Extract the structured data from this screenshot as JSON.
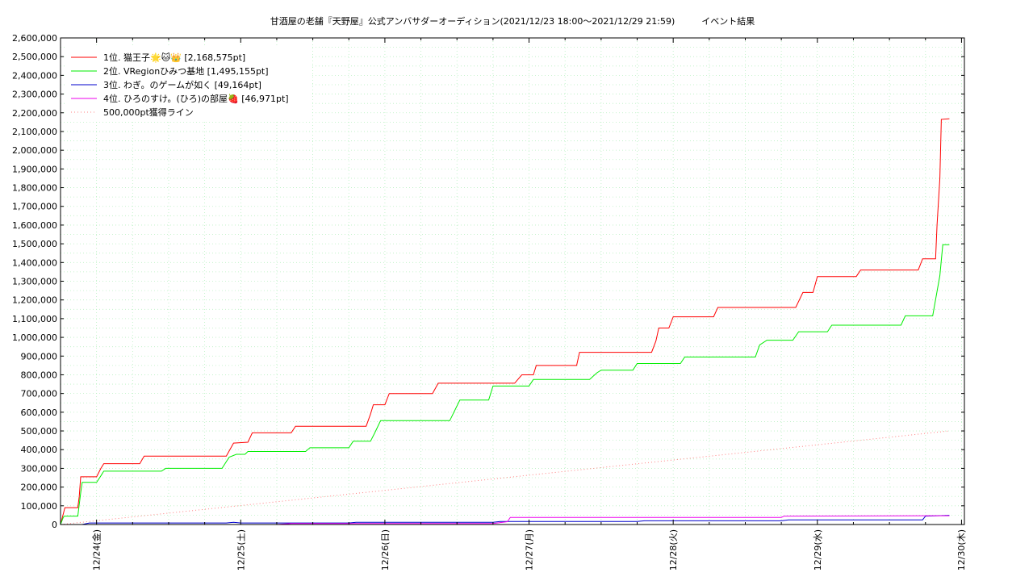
{
  "chart_data": {
    "type": "line",
    "title": "甘酒屋の老舗『天野屋』公式アンバサダーオーディション(2021/12/23 18:00〜2021/12/29 21:59)　　　イベント結果",
    "xlabel": "",
    "ylabel": "",
    "x_unit": "days elapsed from 12/23 18:00",
    "x_range": [
      0,
      6.166
    ],
    "ylim": [
      0,
      2600000
    ],
    "y_ticks": [
      0,
      100000,
      200000,
      300000,
      400000,
      500000,
      600000,
      700000,
      800000,
      900000,
      1000000,
      1100000,
      1200000,
      1300000,
      1400000,
      1500000,
      1600000,
      1700000,
      1800000,
      1900000,
      2000000,
      2100000,
      2200000,
      2300000,
      2400000,
      2500000,
      2600000
    ],
    "y_tick_labels": [
      "0",
      "100,000",
      "200,000",
      "300,000",
      "400,000",
      "500,000",
      "600,000",
      "700,000",
      "800,000",
      "900,000",
      "1,000,000",
      "1,100,000",
      "1,200,000",
      "1,300,000",
      "1,400,000",
      "1,500,000",
      "1,600,000",
      "1,700,000",
      "1,800,000",
      "1,900,000",
      "2,000,000",
      "2,100,000",
      "2,200,000",
      "2,300,000",
      "2,400,000",
      "2,500,000",
      "2,600,000"
    ],
    "x_ticks": [
      0.25,
      1.25,
      2.25,
      3.25,
      4.25,
      5.25,
      6.25
    ],
    "x_tick_labels": [
      "12/24(金)",
      "12/25(土)",
      "12/26(日)",
      "12/27(月)",
      "12/28(火)",
      "12/29(水)",
      "12/30(木)"
    ],
    "grid": true,
    "legend_position": "top-left",
    "series": [
      {
        "name": "1位. 猫王子🌟🐱👑 [2,168,575pt]",
        "color": "#ff0000",
        "style": "solid",
        "points": [
          [
            0,
            0
          ],
          [
            0.02,
            60000
          ],
          [
            0.03,
            90000
          ],
          [
            0.12,
            90000
          ],
          [
            0.13,
            150000
          ],
          [
            0.14,
            255000
          ],
          [
            0.25,
            255000
          ],
          [
            0.28,
            300000
          ],
          [
            0.3,
            325000
          ],
          [
            0.55,
            325000
          ],
          [
            0.58,
            365000
          ],
          [
            1.15,
            365000
          ],
          [
            1.2,
            435000
          ],
          [
            1.3,
            440000
          ],
          [
            1.33,
            490000
          ],
          [
            1.6,
            490000
          ],
          [
            1.63,
            525000
          ],
          [
            2.12,
            525000
          ],
          [
            2.15,
            590000
          ],
          [
            2.17,
            640000
          ],
          [
            2.25,
            640000
          ],
          [
            2.28,
            700000
          ],
          [
            2.58,
            700000
          ],
          [
            2.62,
            755000
          ],
          [
            3.15,
            755000
          ],
          [
            3.2,
            800000
          ],
          [
            3.28,
            800000
          ],
          [
            3.3,
            850000
          ],
          [
            3.58,
            850000
          ],
          [
            3.6,
            920000
          ],
          [
            4.1,
            920000
          ],
          [
            4.13,
            980000
          ],
          [
            4.15,
            1050000
          ],
          [
            4.22,
            1050000
          ],
          [
            4.25,
            1110000
          ],
          [
            4.53,
            1110000
          ],
          [
            4.56,
            1160000
          ],
          [
            5.1,
            1160000
          ],
          [
            5.15,
            1240000
          ],
          [
            5.22,
            1240000
          ],
          [
            5.25,
            1325000
          ],
          [
            5.52,
            1325000
          ],
          [
            5.55,
            1360000
          ],
          [
            5.95,
            1360000
          ],
          [
            5.98,
            1420000
          ],
          [
            6.07,
            1420000
          ],
          [
            6.08,
            1600000
          ],
          [
            6.1,
            1850000
          ],
          [
            6.11,
            2165000
          ],
          [
            6.166,
            2168575
          ]
        ]
      },
      {
        "name": "2位. VRegionひみつ基地 [1,495,155pt]",
        "color": "#00ee00",
        "style": "solid",
        "points": [
          [
            0,
            0
          ],
          [
            0.02,
            40000
          ],
          [
            0.03,
            45000
          ],
          [
            0.12,
            45000
          ],
          [
            0.14,
            170000
          ],
          [
            0.15,
            225000
          ],
          [
            0.25,
            225000
          ],
          [
            0.28,
            260000
          ],
          [
            0.3,
            285000
          ],
          [
            0.7,
            285000
          ],
          [
            0.73,
            300000
          ],
          [
            1.12,
            300000
          ],
          [
            1.17,
            360000
          ],
          [
            1.22,
            375000
          ],
          [
            1.28,
            375000
          ],
          [
            1.3,
            390000
          ],
          [
            1.7,
            390000
          ],
          [
            1.73,
            410000
          ],
          [
            2.0,
            410000
          ],
          [
            2.03,
            445000
          ],
          [
            2.15,
            445000
          ],
          [
            2.18,
            490000
          ],
          [
            2.22,
            555000
          ],
          [
            2.7,
            555000
          ],
          [
            2.77,
            665000
          ],
          [
            2.97,
            665000
          ],
          [
            3.0,
            740000
          ],
          [
            3.25,
            740000
          ],
          [
            3.28,
            775000
          ],
          [
            3.67,
            775000
          ],
          [
            3.72,
            810000
          ],
          [
            3.75,
            825000
          ],
          [
            3.97,
            825000
          ],
          [
            4.0,
            860000
          ],
          [
            4.3,
            860000
          ],
          [
            4.33,
            895000
          ],
          [
            4.82,
            895000
          ],
          [
            4.85,
            960000
          ],
          [
            4.9,
            985000
          ],
          [
            5.08,
            985000
          ],
          [
            5.12,
            1030000
          ],
          [
            5.32,
            1030000
          ],
          [
            5.35,
            1065000
          ],
          [
            5.83,
            1065000
          ],
          [
            5.86,
            1115000
          ],
          [
            6.05,
            1115000
          ],
          [
            6.1,
            1330000
          ],
          [
            6.12,
            1495000
          ],
          [
            6.166,
            1495155
          ]
        ]
      },
      {
        "name": "3位. わぎ。のゲームが如く [49,164pt]",
        "color": "#0000cc",
        "style": "solid",
        "points": [
          [
            0,
            0
          ],
          [
            0.15,
            0
          ],
          [
            0.2,
            8000
          ],
          [
            1.15,
            8000
          ],
          [
            1.2,
            12000
          ],
          [
            1.25,
            8000
          ],
          [
            2.0,
            8000
          ],
          [
            2.05,
            12000
          ],
          [
            3.0,
            12000
          ],
          [
            3.05,
            16000
          ],
          [
            4.0,
            16000
          ],
          [
            4.05,
            20000
          ],
          [
            5.0,
            20000
          ],
          [
            5.05,
            25000
          ],
          [
            5.98,
            25000
          ],
          [
            6.0,
            45000
          ],
          [
            6.166,
            49164
          ]
        ]
      },
      {
        "name": "4位. ひろのすけ。(ひろ)の部屋🍓 [46,971pt]",
        "color": "#ee00ee",
        "style": "solid",
        "points": [
          [
            0,
            0
          ],
          [
            1.5,
            0
          ],
          [
            1.6,
            5000
          ],
          [
            3.0,
            5000
          ],
          [
            3.1,
            15000
          ],
          [
            3.12,
            38000
          ],
          [
            5.0,
            38000
          ],
          [
            5.02,
            45000
          ],
          [
            6.166,
            46971
          ]
        ]
      },
      {
        "name": "500,000pt獲得ライン",
        "color": "#ff8080",
        "style": "dotted",
        "points": [
          [
            0,
            0
          ],
          [
            6.166,
            500000
          ]
        ]
      }
    ]
  }
}
